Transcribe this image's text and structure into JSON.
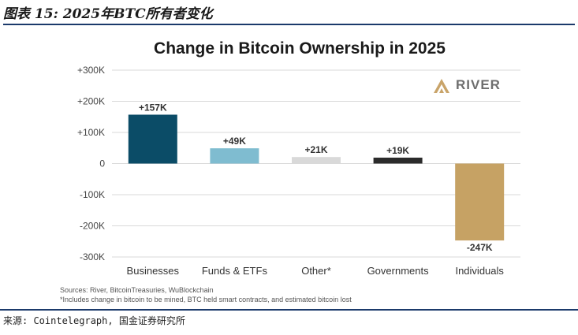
{
  "figure_title": "图表 15: 2025年BTC所有者变化",
  "footer": {
    "source": "来源: Cointelegraph, 国金证券研究所"
  },
  "chart_sources": [
    "Sources: River, BitcoinTreasuries, WuBlockchain",
    "*Includes change in bitcoin to be mined, BTC held smart contracts, and estimated bitcoin lost"
  ],
  "logo": {
    "text": "RIVER",
    "color": "#c9a46a"
  },
  "colors": {
    "title_rule": "#1b3a6b"
  },
  "chart_data": {
    "type": "bar",
    "title": "Change in Bitcoin Ownership in 2025",
    "categories": [
      "Businesses",
      "Funds & ETFs",
      "Other*",
      "Governments",
      "Individuals"
    ],
    "values": [
      157000,
      49000,
      21000,
      19000,
      -247000
    ],
    "data_labels": [
      "+157K",
      "+49K",
      "+21K",
      "+19K",
      "-247K"
    ],
    "colors": [
      "#0b4c67",
      "#7fbcd0",
      "#d9d9d9",
      "#2b2b2b",
      "#c6a264"
    ],
    "ylim": [
      -300000,
      300000
    ],
    "yticks": [
      300000,
      200000,
      100000,
      0,
      -100000,
      -200000,
      -300000
    ],
    "ytick_labels": [
      "+300K",
      "+200K",
      "+100K",
      "0",
      "-100K",
      "-200K",
      "-300K"
    ],
    "xlabel": "",
    "ylabel": "",
    "grid": true,
    "legend": "none"
  }
}
